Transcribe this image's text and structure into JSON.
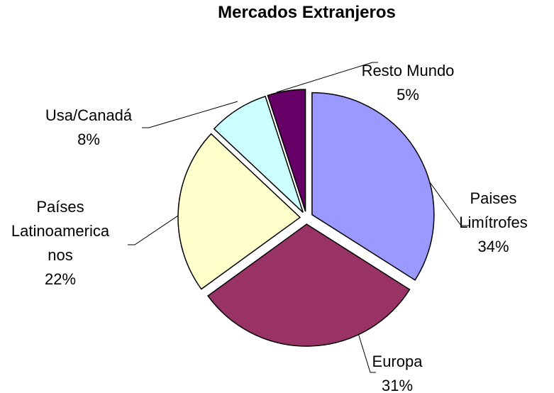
{
  "chart_data": {
    "type": "pie",
    "title": "Mercados Extranjeros",
    "categories": [
      "Paises Limítrofes",
      "Europa",
      "Países Latinoamericanos",
      "Usa/Canadá",
      "Resto Mundo"
    ],
    "values": [
      34,
      31,
      22,
      8,
      5
    ],
    "value_labels": [
      "34%",
      "31%",
      "22%",
      "8%",
      "5%"
    ],
    "colors": [
      "#9999ff",
      "#993366",
      "#ffffcc",
      "#ccffff",
      "#660066"
    ]
  }
}
